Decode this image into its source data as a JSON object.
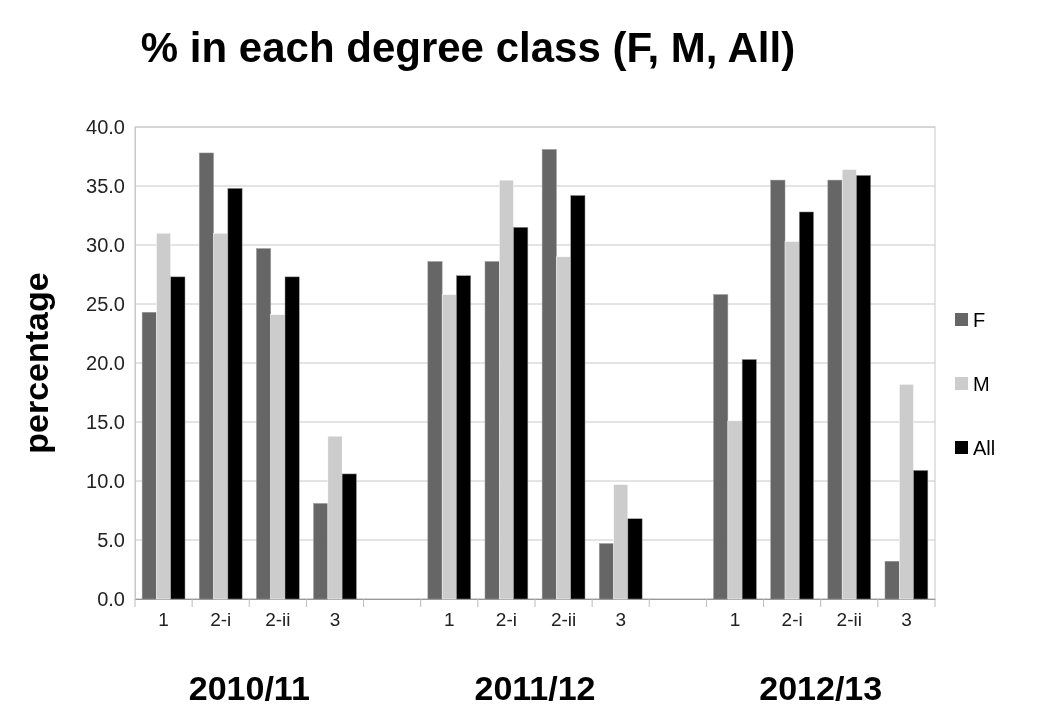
{
  "chart_data": {
    "type": "bar",
    "title": "% in each degree class (F, M, All)",
    "ylabel": "percentage",
    "categories": [
      "1",
      "2-i",
      "2-ii",
      "3",
      null,
      "1",
      "2-i",
      "2-ii",
      "3",
      null,
      "1",
      "2-i",
      "2-ii",
      "3"
    ],
    "series": [
      {
        "name": "F",
        "color": "#666666",
        "values": [
          24.3,
          37.8,
          29.7,
          8.1,
          null,
          28.6,
          28.6,
          38.1,
          4.7,
          null,
          25.8,
          35.5,
          35.5,
          3.2
        ]
      },
      {
        "name": "M",
        "color": "#cccccc",
        "values": [
          31.0,
          31.0,
          24.1,
          13.8,
          null,
          25.8,
          35.5,
          29.0,
          9.7,
          null,
          15.1,
          30.3,
          36.4,
          18.2
        ]
      },
      {
        "name": "All",
        "color": "#000000",
        "values": [
          27.3,
          34.8,
          27.3,
          10.6,
          null,
          27.4,
          31.5,
          34.2,
          6.8,
          null,
          20.3,
          32.8,
          35.9,
          10.9
        ]
      }
    ],
    "ylim": [
      0,
      40
    ],
    "yticks": [
      {
        "value": 0,
        "label": "0.0"
      },
      {
        "value": 5,
        "label": "5.0"
      },
      {
        "value": 10,
        "label": "10.0"
      },
      {
        "value": 15,
        "label": "15.0"
      },
      {
        "value": 20,
        "label": "20.0"
      },
      {
        "value": 25,
        "label": "25.0"
      },
      {
        "value": 30,
        "label": "30.0"
      },
      {
        "value": 35,
        "label": "35.0"
      },
      {
        "value": 40,
        "label": "40.0"
      }
    ],
    "grid": "y",
    "legend": "right",
    "annotations": [
      "2010/11",
      "2011/12",
      "2012/13"
    ]
  }
}
